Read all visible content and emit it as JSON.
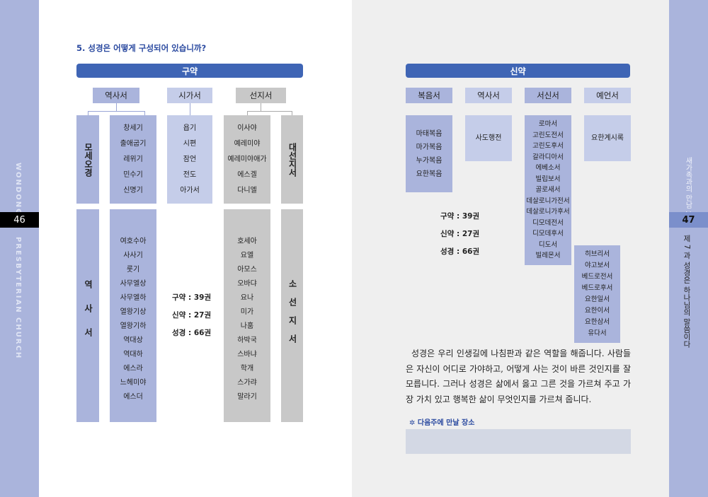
{
  "left_sidebar": {
    "top_text": "WONDONG",
    "page_number": "46",
    "bottom_text": "PRESBYTERIAN CHURCH"
  },
  "right_sidebar": {
    "top_text": "새가족과의 만남 2",
    "page_number": "47",
    "bottom_text": "제 7 과  성경은 하나님의 말씀이다"
  },
  "colors": {
    "sidebar": "#aab4dc",
    "accent_bar": "#3f65b5",
    "title": "#2b4aa0",
    "right_page_bg": "#efefef"
  },
  "question": "5. 성경은 어떻게 구성되어 있습니까?",
  "old_testament": {
    "title": "구약",
    "headers": [
      "역사서",
      "시가서",
      "선지서"
    ],
    "pentateuch_label": "모세오경",
    "pentateuch": [
      "창세기",
      "출애굽기",
      "레위기",
      "민수기",
      "신명기"
    ],
    "poetry": [
      "욥기",
      "시편",
      "잠언",
      "전도",
      "아가서"
    ],
    "major_label": "대선지서",
    "major": [
      "이사야",
      "예레미야",
      "예레미야애가",
      "에스겔",
      "다니엘"
    ],
    "history_label": "역사서",
    "history": [
      "여호수아",
      "사사기",
      "룻기",
      "사무엘상",
      "사무엘하",
      "열왕기상",
      "열왕기하",
      "역대상",
      "역대하",
      "에스라",
      "느헤미야",
      "에스더"
    ],
    "minor_label": "소선지서",
    "minor": [
      "호세아",
      "요엘",
      "아모스",
      "오바댜",
      "요나",
      "미가",
      "나훔",
      "하박국",
      "스바냐",
      "학개",
      "스가랴",
      "말라기"
    ],
    "counts": [
      "구약 : 39권",
      "신약 : 27권",
      "성경 : 66권"
    ]
  },
  "new_testament": {
    "title": "신약",
    "headers": [
      "복음서",
      "역사서",
      "서신서",
      "예언서"
    ],
    "gospels": [
      "마태복음",
      "마가복음",
      "누가복음",
      "요한복음"
    ],
    "history": [
      "사도행전"
    ],
    "pauline": [
      "로마서",
      "고린도전서",
      "고린도후서",
      "갈라디아서",
      "에베소서",
      "빌립보서",
      "골로새서",
      "데살로니가전서",
      "데살로니가후서",
      "디모데전서",
      "디모데후서",
      "디도서",
      "빌레몬서"
    ],
    "general": [
      "히브리서",
      "야고보서",
      "베드로전서",
      "베드로후서",
      "요한일서",
      "요한이서",
      "요한삼서",
      "유다서"
    ],
    "prophecy": [
      "요한계시록"
    ],
    "counts": [
      "구약 : 39권",
      "신약 : 27권",
      "성경 : 66권"
    ]
  },
  "paragraph": "성경은 우리 인생길에 나침판과 같은 역할을 해줍니다. 사람들은 자신이 어디로 가야하고, 어떻게 사는 것이 바른 것인지를 잘 모릅니다. 그러나 성경은 삶에서 옳고 그른 것을 가르쳐 주고 가장 가치 있고 행복한 삶이 무엇인지를 가르쳐 줍니다.",
  "next_meeting": {
    "icon": "asterisk-icon",
    "label": "다음주에 만날 장소",
    "value": ""
  }
}
